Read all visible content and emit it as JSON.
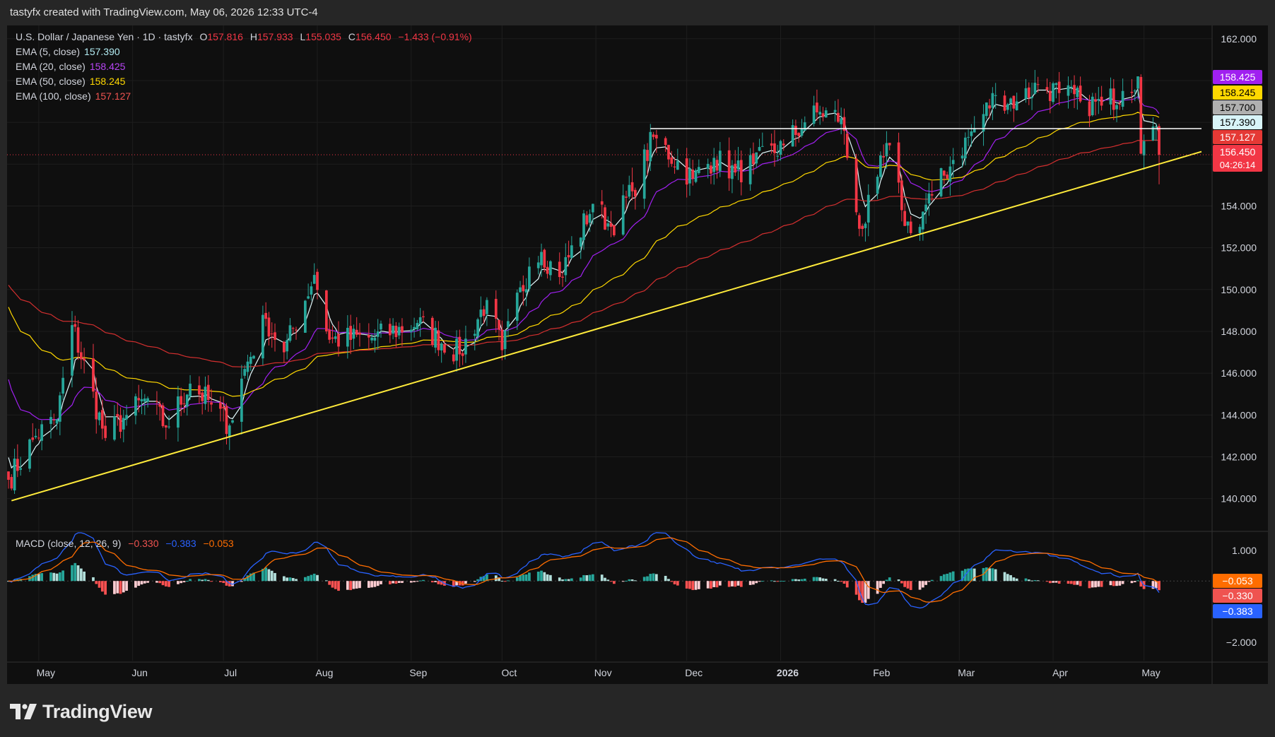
{
  "header": {
    "caption": "tastyfx created with TradingView.com, May 06, 2026 12:33 UTC-4"
  },
  "legend": {
    "symbol": "U.S. Dollar / Japanese Yen · 1D · tastyfx",
    "o_label": "O",
    "o": "157.816",
    "h_label": "H",
    "h": "157.933",
    "l_label": "L",
    "l": "155.035",
    "c_label": "C",
    "c": "156.450",
    "change": "−1.433 (−0.91%)",
    "ema5_label": "EMA (5, close)",
    "ema5": "157.390",
    "ema20_label": "EMA (20, close)",
    "ema20": "158.425",
    "ema50_label": "EMA (50, close)",
    "ema50": "158.245",
    "ema100_label": "EMA (100, close)",
    "ema100": "157.127",
    "macd_label": "MACD (close, 12, 26, 9)",
    "macd_hist": "−0.330",
    "macd_line": "−0.383",
    "macd_signal": "−0.053"
  },
  "footer": {
    "brand": "TradingView"
  },
  "colors": {
    "bg": "#0f0f0f",
    "up": "#26a69a",
    "down": "#f23645",
    "ema5": "#e0f7fa",
    "ema20": "#a020f0",
    "ema50": "#ffd800",
    "ema100": "#d32f2f",
    "trendline": "#ffeb3b",
    "resistance": "#ffffff",
    "macd": "#2962ff",
    "signal": "#ff6d00"
  },
  "chart_data": {
    "type": "candlestick",
    "title": "U.S. Dollar / Japanese Yen · 1D · tastyfx",
    "x_ticks": [
      "May",
      "Jun",
      "Jul",
      "Aug",
      "Sep",
      "Oct",
      "Nov",
      "Dec",
      "2026",
      "Feb",
      "Mar",
      "Apr",
      "May"
    ],
    "y_ticks": [
      "162.000",
      "160.000",
      "158.000",
      "156.000",
      "154.000",
      "152.000",
      "150.000",
      "148.000",
      "146.000",
      "144.000",
      "142.000",
      "140.000"
    ],
    "ylim": [
      138.5,
      162.5
    ],
    "grid": true,
    "anchor_closes": [
      [
        "2025-04-21",
        140.9
      ],
      [
        "2025-04-30",
        143.0
      ],
      [
        "2025-05-07",
        143.8
      ],
      [
        "2025-05-12",
        148.3
      ],
      [
        "2025-05-23",
        142.9
      ],
      [
        "2025-05-30",
        144.0
      ],
      [
        "2025-06-06",
        144.8
      ],
      [
        "2025-06-12",
        143.4
      ],
      [
        "2025-06-20",
        145.5
      ],
      [
        "2025-06-27",
        144.5
      ],
      [
        "2025-07-03",
        143.5
      ],
      [
        "2025-07-08",
        146.2
      ],
      [
        "2025-07-15",
        148.6
      ],
      [
        "2025-07-21",
        147.0
      ],
      [
        "2025-07-31",
        150.7
      ],
      [
        "2025-08-05",
        147.6
      ],
      [
        "2025-08-20",
        147.7
      ],
      [
        "2025-09-03",
        148.4
      ],
      [
        "2025-09-17",
        146.9
      ],
      [
        "2025-09-26",
        149.5
      ],
      [
        "2025-10-01",
        147.1
      ],
      [
        "2025-10-10",
        151.1
      ],
      [
        "2025-10-14",
        151.8
      ],
      [
        "2025-10-20",
        150.6
      ],
      [
        "2025-10-31",
        154.1
      ],
      [
        "2025-11-06",
        153.0
      ],
      [
        "2025-11-13",
        154.7
      ],
      [
        "2025-11-20",
        157.3
      ],
      [
        "2025-12-03",
        155.3
      ],
      [
        "2025-12-10",
        156.3
      ],
      [
        "2025-12-17",
        155.6
      ],
      [
        "2025-12-23",
        156.0
      ],
      [
        "2026-01-02",
        156.9
      ],
      [
        "2026-01-09",
        158.0
      ],
      [
        "2026-01-14",
        158.5
      ],
      [
        "2026-01-21",
        158.2
      ],
      [
        "2026-01-26",
        153.7
      ],
      [
        "2026-01-28",
        152.9
      ],
      [
        "2026-02-02",
        155.4
      ],
      [
        "2026-02-06",
        156.9
      ],
      [
        "2026-02-10",
        153.8
      ],
      [
        "2026-02-13",
        152.7
      ],
      [
        "2026-02-20",
        154.5
      ],
      [
        "2026-02-27",
        156.2
      ],
      [
        "2026-03-06",
        157.7
      ],
      [
        "2026-03-13",
        159.3
      ],
      [
        "2026-03-20",
        159.0
      ],
      [
        "2026-03-27",
        159.8
      ],
      [
        "2026-04-03",
        159.4
      ],
      [
        "2026-04-10",
        159.0
      ],
      [
        "2026-04-17",
        158.8
      ],
      [
        "2026-04-24",
        159.5
      ],
      [
        "2026-04-29",
        160.2
      ],
      [
        "2026-04-30",
        156.5
      ],
      [
        "2026-05-01",
        157.1
      ],
      [
        "2026-05-04",
        157.8
      ],
      [
        "2026-05-05",
        157.8
      ],
      [
        "2026-05-06",
        156.45
      ]
    ],
    "last_candle": {
      "open": 157.816,
      "high": 157.933,
      "low": 155.035,
      "close": 156.45
    },
    "ema": [
      {
        "name": "EMA (5, close)",
        "period": 5,
        "last": 157.39,
        "color": "#e0f7fa"
      },
      {
        "name": "EMA (20, close)",
        "period": 20,
        "last": 158.425,
        "color": "#a020f0"
      },
      {
        "name": "EMA (50, close)",
        "period": 50,
        "last": 158.245,
        "color": "#ffd800"
      },
      {
        "name": "EMA (100, close)",
        "period": 100,
        "last": 157.127,
        "color": "#d32f2f"
      }
    ],
    "trendline": [
      [
        "2025-04-22",
        139.9
      ],
      [
        "2026-05-20",
        156.6
      ]
    ],
    "resistance_line": {
      "from": "2025-11-19",
      "to": "2026-05-20",
      "price": 157.7
    },
    "price_badges": [
      {
        "value": "158.425",
        "color": "#a020f0",
        "text_color": "#ffffff"
      },
      {
        "value": "158.245",
        "color": "#ffd800",
        "text_color": "#000000"
      },
      {
        "value": "157.700",
        "color": "#b0b0b0",
        "text_color": "#000000"
      },
      {
        "value": "157.390",
        "color": "#d8f4f8",
        "text_color": "#000000"
      },
      {
        "value": "157.127",
        "color": "#e53935",
        "text_color": "#ffffff"
      },
      {
        "value": "156.450",
        "sub": "04:26:14",
        "color": "#f23645",
        "text_color": "#ffffff"
      }
    ],
    "macd": {
      "name": "MACD (close, 12, 26, 9)",
      "y_ticks": [
        "1.000",
        "−2.000"
      ],
      "ylim": [
        -2.6,
        1.55
      ],
      "values": {
        "histogram": -0.33,
        "macd": -0.383,
        "signal": -0.053
      },
      "badges": [
        {
          "value": "−0.053",
          "color": "#ff6d00"
        },
        {
          "value": "−0.330",
          "color": "#ef5350"
        },
        {
          "value": "−0.383",
          "color": "#2962ff"
        }
      ]
    }
  }
}
